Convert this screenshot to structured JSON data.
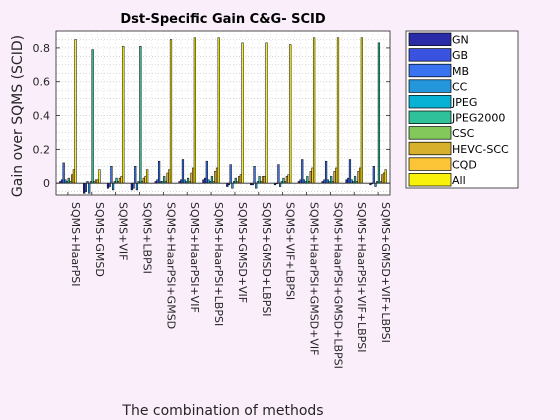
{
  "chart_data": {
    "type": "bar",
    "title": "Dst-Specific Gain C&G- SCID",
    "xlabel": "The combination of methods",
    "ylabel": "Gain over SQMS (SCID)",
    "ylim": [
      -0.07,
      0.9
    ],
    "yticks": [
      0,
      0.2,
      0.4,
      0.6,
      0.8
    ],
    "ytick_labels": [
      "0",
      "0.2",
      "0.4",
      "0.6",
      "0.8"
    ],
    "grid": true,
    "legend_position": "outside-right",
    "categories": [
      "SQMS+HaarPSI",
      "SQMS+GMSD",
      "SQMS+VIF",
      "SQMS+LBPSI",
      "SQMS+HaarPSI+GMSD",
      "SQMS+HaarPSI+VIF",
      "SQMS+HaarPSI+LBPSI",
      "SQMS+GMSD+VIF",
      "SQMS+GMSD+LBPSI",
      "SQMS+VIF+LBPSI",
      "SQMS+HaarPSI+GMSD+VIF",
      "SQMS+HaarPSI+GMSD+LBPSI",
      "SQMS+HaarPSI+VIF+LBPSI",
      "SQMS+GMSD+VIF+LBPSI"
    ],
    "series": [
      {
        "name": "GN",
        "color": "#2a2ba6",
        "values": [
          0.01,
          -0.06,
          -0.03,
          -0.04,
          0.01,
          0.01,
          0.02,
          -0.02,
          -0.01,
          -0.01,
          0.01,
          0.01,
          0.02,
          -0.01
        ]
      },
      {
        "name": "GB",
        "color": "#3a52e0",
        "values": [
          0.02,
          -0.05,
          -0.02,
          -0.03,
          0.02,
          0.02,
          0.03,
          -0.01,
          -0.01,
          0.0,
          0.02,
          0.02,
          0.03,
          0.0
        ]
      },
      {
        "name": "MB",
        "color": "#3a73f0",
        "values": [
          0.12,
          0.01,
          0.1,
          0.1,
          0.13,
          0.14,
          0.13,
          0.11,
          0.1,
          0.11,
          0.14,
          0.13,
          0.14,
          0.1
        ]
      },
      {
        "name": "CC",
        "color": "#2496dc",
        "values": [
          0.02,
          -0.06,
          -0.04,
          -0.04,
          0.01,
          0.02,
          0.02,
          -0.03,
          -0.03,
          -0.02,
          0.02,
          0.02,
          0.02,
          -0.02
        ]
      },
      {
        "name": "JPEG",
        "color": "#08b2d4",
        "values": [
          0.01,
          0.01,
          0.01,
          0.01,
          0.01,
          0.01,
          0.01,
          0.01,
          0.01,
          0.01,
          0.01,
          0.01,
          0.01,
          0.01
        ]
      },
      {
        "name": "JPEG2000",
        "color": "#2ec19a",
        "values": [
          0.03,
          0.79,
          0.03,
          0.81,
          0.04,
          0.03,
          0.04,
          0.03,
          0.04,
          0.03,
          0.04,
          0.04,
          0.04,
          0.83
        ]
      },
      {
        "name": "CSC",
        "color": "#82c85a",
        "values": [
          0.01,
          0.01,
          0.01,
          0.01,
          0.01,
          0.01,
          0.01,
          0.01,
          0.01,
          0.01,
          0.01,
          0.01,
          0.01,
          0.01
        ]
      },
      {
        "name": "HEVC-SCC",
        "color": "#d7b12d",
        "values": [
          0.05,
          0.02,
          0.03,
          0.03,
          0.06,
          0.06,
          0.07,
          0.04,
          0.04,
          0.04,
          0.07,
          0.07,
          0.07,
          0.05
        ]
      },
      {
        "name": "CQD",
        "color": "#fbc537",
        "values": [
          0.08,
          0.02,
          0.04,
          0.04,
          0.08,
          0.09,
          0.09,
          0.05,
          0.04,
          0.05,
          0.09,
          0.09,
          0.09,
          0.06
        ]
      },
      {
        "name": "All",
        "color": "#f8f10c",
        "values": [
          0.85,
          0.08,
          0.81,
          0.08,
          0.85,
          0.86,
          0.86,
          0.83,
          0.83,
          0.82,
          0.86,
          0.86,
          0.86,
          0.08
        ]
      }
    ]
  }
}
